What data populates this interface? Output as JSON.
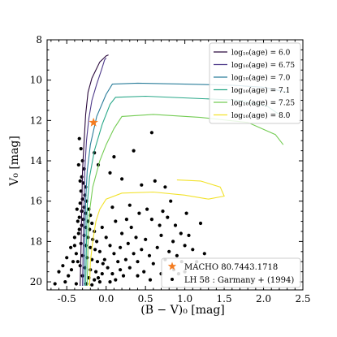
{
  "chart_data": {
    "type": "scatter",
    "xlabel": "(B − V)₀ [mag]",
    "ylabel": "V₀ [mag]",
    "xlim": [
      -0.75,
      2.5
    ],
    "ylim": [
      20.4,
      8.0
    ],
    "y_inverted": true,
    "x_ticks": [
      "-0.5",
      "0.0",
      "0.5",
      "1.0",
      "1.5",
      "2.0",
      "2.5"
    ],
    "x_tick_values": [
      -0.5,
      0.0,
      0.5,
      1.0,
      1.5,
      2.0,
      2.5
    ],
    "y_ticks": [
      "8",
      "10",
      "12",
      "14",
      "16",
      "18",
      "20"
    ],
    "y_tick_values": [
      8,
      10,
      12,
      14,
      16,
      18,
      20
    ],
    "grid": false,
    "legend_placement_isochrones": "top-right",
    "legend_placement_points": "bottom-right",
    "isochrones": [
      {
        "name": "log₁₀(age) = 6.0",
        "color": "#2b0a3d",
        "points": [
          [
            -0.33,
            20.2
          ],
          [
            -0.32,
            18.5
          ],
          [
            -0.31,
            16.5
          ],
          [
            -0.3,
            14.5
          ],
          [
            -0.28,
            13.0
          ],
          [
            -0.26,
            11.7
          ],
          [
            -0.23,
            10.6
          ],
          [
            -0.18,
            9.9
          ],
          [
            -0.08,
            9.1
          ],
          [
            0.0,
            8.8
          ],
          [
            0.03,
            8.75
          ]
        ]
      },
      {
        "name": "log₁₀(age) = 6.75",
        "color": "#4e3a8a",
        "points": [
          [
            -0.3,
            20.2
          ],
          [
            -0.29,
            18.0
          ],
          [
            -0.28,
            16.0
          ],
          [
            -0.27,
            14.4
          ],
          [
            -0.25,
            13.0
          ],
          [
            -0.22,
            11.9
          ],
          [
            -0.18,
            11.0
          ],
          [
            -0.12,
            10.2
          ],
          [
            -0.06,
            9.5
          ],
          [
            -0.02,
            9.0
          ],
          [
            0.0,
            8.9
          ]
        ]
      },
      {
        "name": "log₁₀(age) = 7.0",
        "color": "#2a7d9a",
        "points": [
          [
            -0.28,
            20.2
          ],
          [
            -0.27,
            18.0
          ],
          [
            -0.26,
            16.0
          ],
          [
            -0.24,
            14.5
          ],
          [
            -0.2,
            13.2
          ],
          [
            -0.12,
            11.8
          ],
          [
            0.0,
            10.7
          ],
          [
            0.08,
            10.2
          ],
          [
            0.4,
            10.15
          ],
          [
            1.0,
            10.2
          ],
          [
            1.6,
            10.25
          ],
          [
            2.0,
            10.35
          ],
          [
            2.3,
            10.6
          ]
        ]
      },
      {
        "name": "log₁₀(age) = 7.1",
        "color": "#2aa889",
        "points": [
          [
            -0.26,
            20.2
          ],
          [
            -0.25,
            18.0
          ],
          [
            -0.24,
            16.2
          ],
          [
            -0.21,
            14.8
          ],
          [
            -0.15,
            13.5
          ],
          [
            -0.05,
            12.2
          ],
          [
            0.05,
            11.2
          ],
          [
            0.12,
            10.85
          ],
          [
            0.5,
            10.8
          ],
          [
            1.1,
            10.9
          ],
          [
            1.7,
            11.0
          ],
          [
            2.05,
            11.3
          ],
          [
            2.2,
            11.7
          ]
        ]
      },
      {
        "name": "log₁₀(age) = 7.25",
        "color": "#74cc54",
        "points": [
          [
            -0.24,
            20.2
          ],
          [
            -0.23,
            18.0
          ],
          [
            -0.21,
            16.5
          ],
          [
            -0.17,
            15.3
          ],
          [
            -0.08,
            14.0
          ],
          [
            0.0,
            13.2
          ],
          [
            0.1,
            12.4
          ],
          [
            0.2,
            11.8
          ],
          [
            0.6,
            11.7
          ],
          [
            1.2,
            11.85
          ],
          [
            1.8,
            12.1
          ],
          [
            2.15,
            12.7
          ],
          [
            2.25,
            13.2
          ]
        ]
      },
      {
        "name": "log₁₀(age) = 8.0",
        "color": "#f2e22a",
        "points": [
          [
            -0.21,
            20.2
          ],
          [
            -0.2,
            19.0
          ],
          [
            -0.17,
            18.0
          ],
          [
            -0.13,
            17.0
          ],
          [
            -0.08,
            16.4
          ],
          [
            0.0,
            15.9
          ],
          [
            0.2,
            15.6
          ],
          [
            0.6,
            15.55
          ],
          [
            1.0,
            15.7
          ],
          [
            1.3,
            15.9
          ],
          [
            1.5,
            15.75
          ],
          [
            1.45,
            15.3
          ],
          [
            1.2,
            15.0
          ],
          [
            0.9,
            14.95
          ]
        ]
      }
    ],
    "macho_star": {
      "name": "MACHO 80.7443.1718",
      "x": -0.16,
      "y": 12.1,
      "color": "#f47c20"
    },
    "points_series": {
      "name": "LH 58 : Garmany + (1994)",
      "color": "#000000"
    },
    "points": [
      [
        -0.3,
        14.0
      ],
      [
        -0.28,
        14.4
      ],
      [
        -0.31,
        14.8
      ],
      [
        -0.29,
        15.1
      ],
      [
        -0.26,
        15.3
      ],
      [
        -0.32,
        15.5
      ],
      [
        -0.27,
        15.7
      ],
      [
        -0.3,
        15.9
      ],
      [
        -0.25,
        16.0
      ],
      [
        -0.33,
        16.1
      ],
      [
        -0.28,
        16.3
      ],
      [
        -0.22,
        16.4
      ],
      [
        -0.31,
        16.5
      ],
      [
        -0.26,
        16.6
      ],
      [
        -0.2,
        16.7
      ],
      [
        -0.34,
        16.8
      ],
      [
        -0.29,
        16.9
      ],
      [
        -0.23,
        17.0
      ],
      [
        -0.18,
        17.1
      ],
      [
        -0.31,
        17.2
      ],
      [
        -0.26,
        17.3
      ],
      [
        -0.21,
        17.4
      ],
      [
        -0.15,
        17.5
      ],
      [
        -0.35,
        17.6
      ],
      [
        -0.28,
        17.7
      ],
      [
        -0.23,
        17.8
      ],
      [
        -0.17,
        17.9
      ],
      [
        -0.12,
        18.0
      ],
      [
        -0.32,
        18.1
      ],
      [
        -0.26,
        18.2
      ],
      [
        -0.2,
        18.3
      ],
      [
        -0.14,
        18.4
      ],
      [
        -0.08,
        18.5
      ],
      [
        -0.38,
        18.6
      ],
      [
        -0.3,
        18.7
      ],
      [
        -0.24,
        18.8
      ],
      [
        -0.18,
        18.9
      ],
      [
        -0.11,
        19.0
      ],
      [
        -0.04,
        19.1
      ],
      [
        -0.33,
        19.2
      ],
      [
        -0.27,
        19.3
      ],
      [
        -0.2,
        19.4
      ],
      [
        -0.13,
        19.5
      ],
      [
        -0.05,
        19.6
      ],
      [
        -0.3,
        19.7
      ],
      [
        -0.22,
        19.8
      ],
      [
        -0.15,
        19.9
      ],
      [
        -0.08,
        20.0
      ],
      [
        -0.25,
        20.1
      ],
      [
        -0.18,
        20.15
      ],
      [
        -0.36,
        17.0
      ],
      [
        -0.4,
        17.8
      ],
      [
        -0.45,
        18.3
      ],
      [
        -0.5,
        18.8
      ],
      [
        -0.55,
        19.2
      ],
      [
        -0.6,
        19.5
      ],
      [
        -0.42,
        19.0
      ],
      [
        -0.48,
        19.7
      ],
      [
        -0.65,
        20.1
      ],
      [
        -0.52,
        20.0
      ],
      [
        -0.38,
        20.1
      ],
      [
        -0.44,
        19.4
      ],
      [
        -0.36,
        19.0
      ],
      [
        -0.4,
        18.2
      ],
      [
        -0.34,
        17.4
      ],
      [
        -0.37,
        16.4
      ],
      [
        -0.33,
        15.0
      ],
      [
        -0.35,
        14.2
      ],
      [
        -0.32,
        13.4
      ],
      [
        -0.34,
        12.9
      ],
      [
        -0.05,
        17.3
      ],
      [
        0.0,
        17.8
      ],
      [
        0.05,
        18.2
      ],
      [
        0.1,
        18.6
      ],
      [
        0.15,
        19.0
      ],
      [
        0.02,
        19.3
      ],
      [
        0.08,
        19.6
      ],
      [
        0.12,
        19.9
      ],
      [
        -0.02,
        18.9
      ],
      [
        0.18,
        18.3
      ],
      [
        0.2,
        17.6
      ],
      [
        0.25,
        18.9
      ],
      [
        0.3,
        19.3
      ],
      [
        0.22,
        19.7
      ],
      [
        0.28,
        18.1
      ],
      [
        0.35,
        18.6
      ],
      [
        0.4,
        19.0
      ],
      [
        0.45,
        18.4
      ],
      [
        0.38,
        17.8
      ],
      [
        0.32,
        17.3
      ],
      [
        0.5,
        17.9
      ],
      [
        0.55,
        18.7
      ],
      [
        0.6,
        19.1
      ],
      [
        0.48,
        19.5
      ],
      [
        0.65,
        18.3
      ],
      [
        0.7,
        17.7
      ],
      [
        0.75,
        18.9
      ],
      [
        0.8,
        18.5
      ],
      [
        0.68,
        17.2
      ],
      [
        0.85,
        18.0
      ],
      [
        0.9,
        18.7
      ],
      [
        0.95,
        17.6
      ],
      [
        1.0,
        18.2
      ],
      [
        0.78,
        16.8
      ],
      [
        0.58,
        16.9
      ],
      [
        0.42,
        16.6
      ],
      [
        0.26,
        16.9
      ],
      [
        0.12,
        17.0
      ],
      [
        0.08,
        16.3
      ],
      [
        0.3,
        16.2
      ],
      [
        0.52,
        16.4
      ],
      [
        0.72,
        16.5
      ],
      [
        0.88,
        17.2
      ],
      [
        1.05,
        17.7
      ],
      [
        1.1,
        18.4
      ],
      [
        0.96,
        19.0
      ],
      [
        0.86,
        19.4
      ],
      [
        0.7,
        19.6
      ],
      [
        0.56,
        19.9
      ],
      [
        0.4,
        19.7
      ],
      [
        0.18,
        19.4
      ],
      [
        0.05,
        20.0
      ],
      [
        -0.1,
        19.8
      ],
      [
        0.62,
        15.0
      ],
      [
        0.2,
        14.9
      ],
      [
        0.05,
        14.6
      ],
      [
        -0.1,
        14.2
      ],
      [
        -0.15,
        13.6
      ],
      [
        0.1,
        13.8
      ],
      [
        0.35,
        13.5
      ],
      [
        0.58,
        12.6
      ],
      [
        0.82,
        16.0
      ],
      [
        1.02,
        16.6
      ],
      [
        1.2,
        17.1
      ],
      [
        1.15,
        19.0
      ],
      [
        1.0,
        19.5
      ],
      [
        0.92,
        19.6
      ],
      [
        1.25,
        18.6
      ],
      [
        0.75,
        15.3
      ],
      [
        0.45,
        15.2
      ]
    ]
  },
  "legend": {
    "isochrone_labels": [
      "log₁₀(age) = 6.0",
      "log₁₀(age) = 6.75",
      "log₁₀(age) = 7.0",
      "log₁₀(age) = 7.1",
      "log₁₀(age) = 7.25",
      "log₁₀(age) = 8.0"
    ],
    "point_labels": [
      "MACHO 80.7443.1718",
      "LH 58 : Garmany + (1994)"
    ]
  }
}
